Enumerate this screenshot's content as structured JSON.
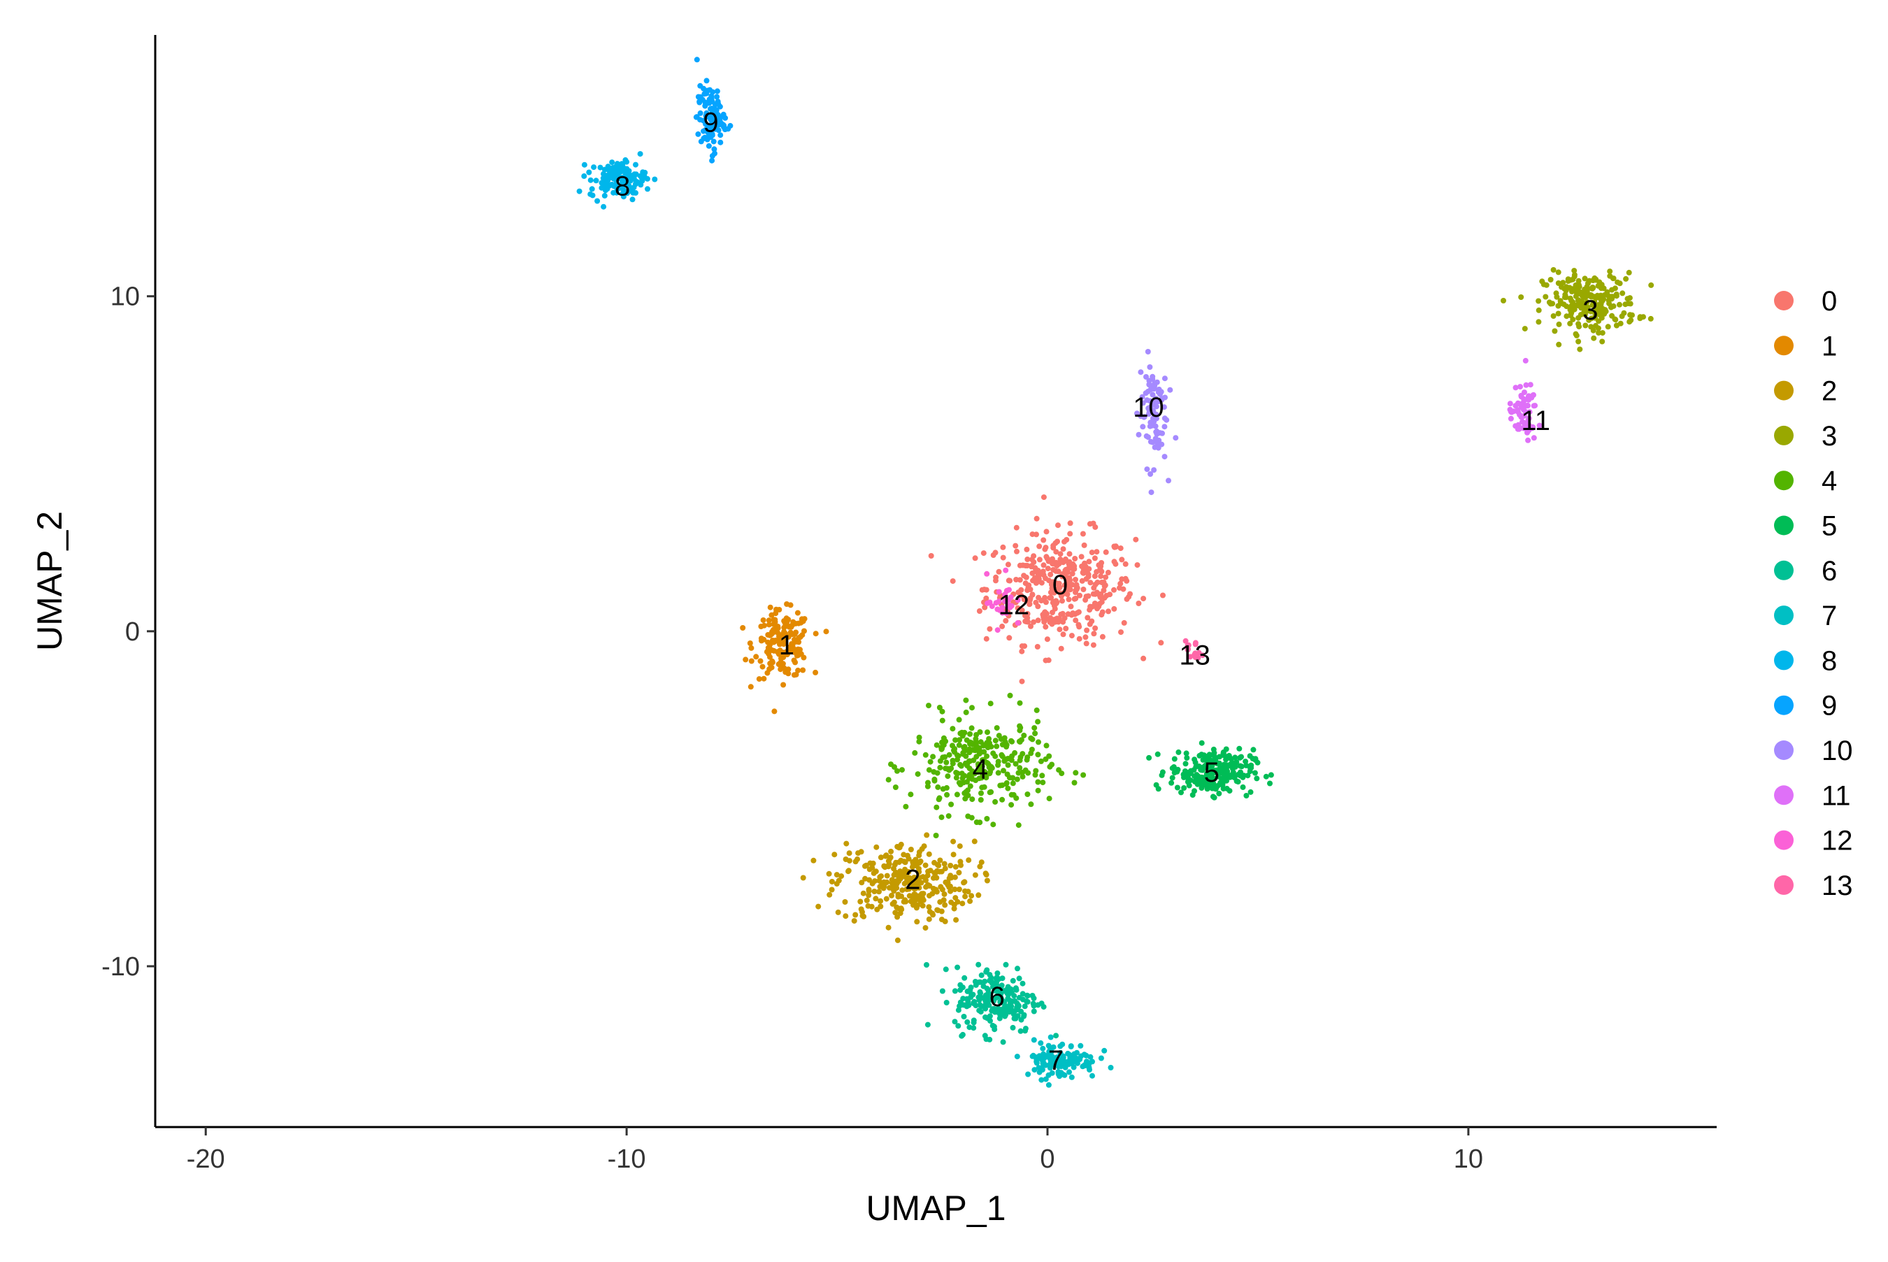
{
  "chart_data": {
    "type": "scatter",
    "title": "",
    "xlabel": "UMAP_1",
    "ylabel": "UMAP_2",
    "xlim": [
      -21.2,
      15.9
    ],
    "ylim": [
      -14.8,
      17.8
    ],
    "x_ticks": [
      -20,
      -10,
      0,
      10
    ],
    "x_tick_labels": [
      "-20",
      "-10",
      "0",
      "10"
    ],
    "y_ticks": [
      -10,
      0,
      10
    ],
    "y_tick_labels": [
      "-10",
      "0",
      "10"
    ],
    "grid": false,
    "legend_position": "right",
    "legend_title": "",
    "clusters": [
      {
        "name": "0",
        "color": "#F8766D",
        "center": [
          0.3,
          1.3
        ],
        "spread": [
          1.6,
          1.5
        ],
        "count": 380
      },
      {
        "name": "1",
        "color": "#E38900",
        "center": [
          -6.3,
          -0.4
        ],
        "spread": [
          0.6,
          0.9
        ],
        "count": 170
      },
      {
        "name": "2",
        "color": "#C49A00",
        "center": [
          -3.4,
          -7.5
        ],
        "spread": [
          1.5,
          1.1
        ],
        "count": 300
      },
      {
        "name": "3",
        "color": "#99A800",
        "center": [
          12.9,
          9.8
        ],
        "spread": [
          1.0,
          0.8
        ],
        "count": 240
      },
      {
        "name": "4",
        "color": "#53B400",
        "center": [
          -1.6,
          -4.0
        ],
        "spread": [
          1.5,
          1.3
        ],
        "count": 290
      },
      {
        "name": "5",
        "color": "#00BC56",
        "center": [
          3.9,
          -4.2
        ],
        "spread": [
          0.9,
          0.6
        ],
        "count": 230
      },
      {
        "name": "6",
        "color": "#00C094",
        "center": [
          -1.2,
          -11.0
        ],
        "spread": [
          0.9,
          0.9
        ],
        "count": 200
      },
      {
        "name": "7",
        "color": "#00BFC4",
        "center": [
          0.3,
          -12.8
        ],
        "spread": [
          0.8,
          0.5
        ],
        "count": 120
      },
      {
        "name": "8",
        "color": "#00B6EB",
        "center": [
          -10.2,
          13.5
        ],
        "spread": [
          0.6,
          0.5
        ],
        "count": 130
      },
      {
        "name": "9",
        "color": "#06A4FF",
        "center": [
          -8.0,
          15.3
        ],
        "spread": [
          0.3,
          0.9
        ],
        "count": 110
      },
      {
        "name": "10",
        "color": "#A58AFF",
        "center": [
          2.5,
          6.6
        ],
        "spread": [
          0.3,
          1.5
        ],
        "count": 90
      },
      {
        "name": "11",
        "color": "#DF70F8",
        "center": [
          11.3,
          6.5
        ],
        "spread": [
          0.3,
          0.8
        ],
        "count": 70
      },
      {
        "name": "12",
        "color": "#FB61D7",
        "center": [
          -1.1,
          0.9
        ],
        "spread": [
          0.3,
          0.7
        ],
        "count": 25
      },
      {
        "name": "13",
        "color": "#FF66A8",
        "center": [
          3.5,
          -0.6
        ],
        "spread": [
          0.2,
          0.3
        ],
        "count": 15
      }
    ],
    "cluster_label_positions": [
      {
        "name": "0",
        "x": 0.3,
        "y": 1.4
      },
      {
        "name": "1",
        "x": -6.2,
        "y": -0.4
      },
      {
        "name": "2",
        "x": -3.2,
        "y": -7.4
      },
      {
        "name": "3",
        "x": 12.9,
        "y": 9.6
      },
      {
        "name": "4",
        "x": -1.6,
        "y": -4.1
      },
      {
        "name": "5",
        "x": 3.9,
        "y": -4.2
      },
      {
        "name": "6",
        "x": -1.2,
        "y": -10.9
      },
      {
        "name": "7",
        "x": 0.2,
        "y": -12.8
      },
      {
        "name": "8",
        "x": -10.1,
        "y": 13.3
      },
      {
        "name": "9",
        "x": -8.0,
        "y": 15.2
      },
      {
        "name": "10",
        "x": 2.4,
        "y": 6.7
      },
      {
        "name": "11",
        "x": 11.6,
        "y": 6.3
      },
      {
        "name": "12",
        "x": -0.8,
        "y": 0.8
      },
      {
        "name": "13",
        "x": 3.5,
        "y": -0.7
      }
    ]
  }
}
